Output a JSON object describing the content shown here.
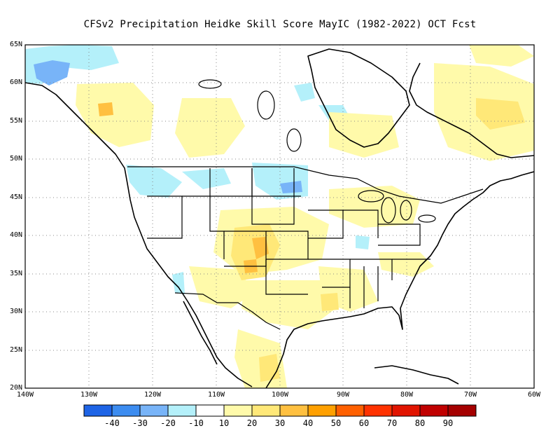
{
  "title": "CFSv2  Precipitation Heidke Skill Score MayIC (1982-2022) OCT Fcst",
  "lat_labels": [
    "65N",
    "60N",
    "55N",
    "50N",
    "45N",
    "40N",
    "35N",
    "30N",
    "25N",
    "20N"
  ],
  "lon_labels": [
    "140W",
    "130W",
    "120W",
    "110W",
    "100W",
    "90W",
    "80W",
    "70W",
    "60W"
  ],
  "legend": {
    "labels": [
      "-40",
      "-30",
      "-20",
      "-10",
      "10",
      "20",
      "30",
      "40",
      "50",
      "60",
      "70",
      "80",
      "90"
    ],
    "colors": [
      "#1e64e6",
      "#3c8cf0",
      "#78b4f8",
      "#b4f0fa",
      "#ffffff",
      "#fffaaa",
      "#ffe878",
      "#ffc040",
      "#ffa000",
      "#ff6000",
      "#ff3200",
      "#e11400",
      "#c00000",
      "#a50000"
    ]
  },
  "fill_colors": {
    "light_blue": "#b4f0fa",
    "mid_blue": "#78b4f8",
    "light_yellow": "#fffaaa",
    "yellow": "#ffe878",
    "orange": "#ffc040"
  }
}
